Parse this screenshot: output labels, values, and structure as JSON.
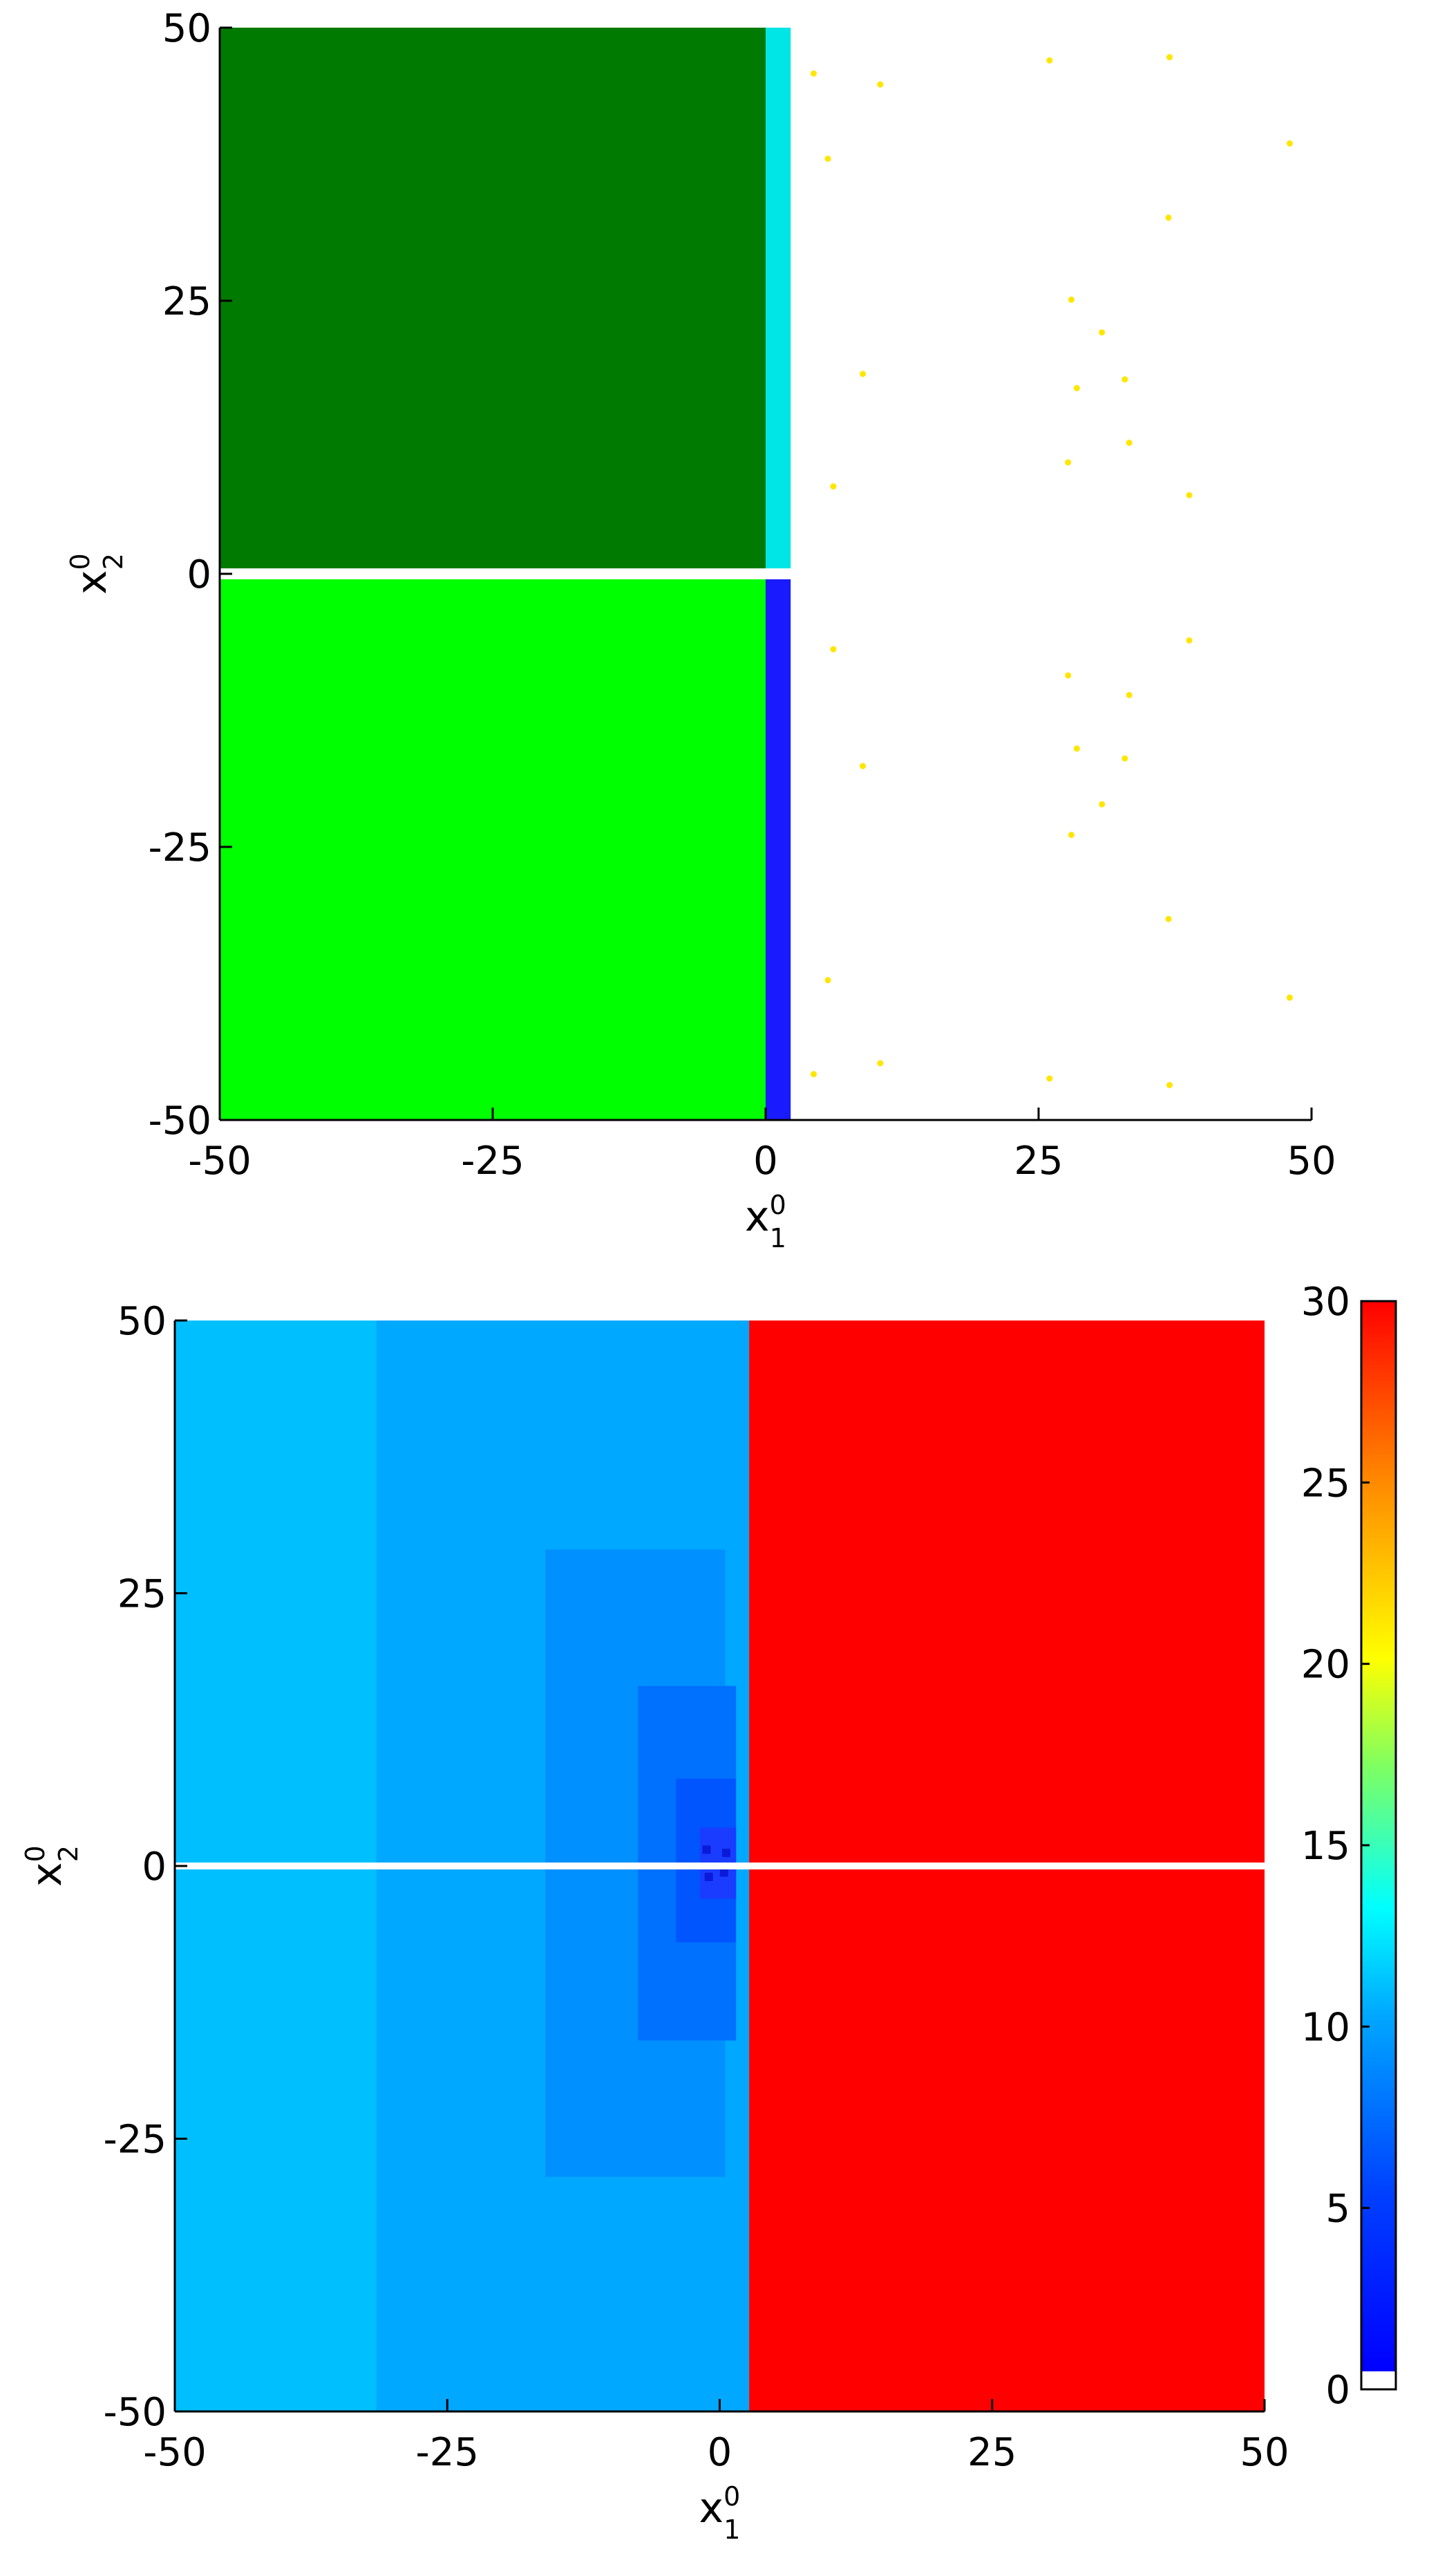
{
  "chart_data": [
    {
      "type": "heatmap",
      "title": "",
      "xlim": [
        -50,
        50
      ],
      "ylim": [
        -50,
        50
      ],
      "xticks": [
        -50,
        -25,
        0,
        25,
        50
      ],
      "yticks": [
        -50,
        -25,
        0,
        25,
        50
      ],
      "xticklabels": [
        "-50",
        "-25",
        "0",
        "25",
        "50"
      ],
      "yticklabels": [
        "-50",
        "-25",
        "0",
        "25",
        "50"
      ],
      "xlabel": {
        "base": "x",
        "sup": "0",
        "sub": "1"
      },
      "ylabel": {
        "base": "x",
        "sup": "0",
        "sub": "2"
      },
      "grid": false,
      "regions": [
        {
          "x": [
            -50,
            0
          ],
          "y": [
            0.5,
            50
          ],
          "color": "#007a00"
        },
        {
          "x": [
            -50,
            0
          ],
          "y": [
            -50,
            -0.5
          ],
          "color": "#00ff00"
        },
        {
          "x": [
            0,
            2.3
          ],
          "y": [
            0.5,
            50
          ],
          "color": "#00e5e5"
        },
        {
          "x": [
            0,
            2.3
          ],
          "y": [
            -50,
            -0.5
          ],
          "color": "#1a1aff"
        },
        {
          "x": [
            2.3,
            50
          ],
          "y": [
            -50,
            50
          ],
          "color": "#ffffff"
        }
      ],
      "points": {
        "color": "#ffe600",
        "xy": [
          [
            4.4,
            45.8
          ],
          [
            10.5,
            44.8
          ],
          [
            26,
            47
          ],
          [
            37,
            47.3
          ],
          [
            48,
            39.4
          ],
          [
            5.7,
            38
          ],
          [
            36.9,
            32.6
          ],
          [
            28,
            25.1
          ],
          [
            30.8,
            22.1
          ],
          [
            8.9,
            18.3
          ],
          [
            28.5,
            17
          ],
          [
            32.9,
            17.8
          ],
          [
            33.3,
            12
          ],
          [
            27.7,
            10.2
          ],
          [
            6.2,
            8
          ],
          [
            38.8,
            7.2
          ],
          [
            4.4,
            -45.8
          ],
          [
            10.5,
            -44.8
          ],
          [
            26,
            -46.2
          ],
          [
            37,
            -46.8
          ],
          [
            48,
            -38.8
          ],
          [
            5.7,
            -37.2
          ],
          [
            36.9,
            -31.6
          ],
          [
            28,
            -23.9
          ],
          [
            30.8,
            -21.1
          ],
          [
            8.9,
            -17.6
          ],
          [
            28.5,
            -16
          ],
          [
            32.9,
            -16.9
          ],
          [
            33.3,
            -11.1
          ],
          [
            27.7,
            -9.3
          ],
          [
            6.2,
            -6.9
          ],
          [
            38.8,
            -6.1
          ]
        ]
      }
    },
    {
      "type": "heatmap",
      "title": "",
      "xlim": [
        -50,
        50
      ],
      "ylim": [
        -50,
        50
      ],
      "xticks": [
        -50,
        -25,
        0,
        25,
        50
      ],
      "yticks": [
        -50,
        -25,
        0,
        25,
        50
      ],
      "xticklabels": [
        "-50",
        "-25",
        "0",
        "25",
        "50"
      ],
      "yticklabels": [
        "-50",
        "-25",
        "0",
        "25",
        "50"
      ],
      "xlabel": {
        "base": "x",
        "sup": "0",
        "sub": "1"
      },
      "ylabel": {
        "base": "x",
        "sup": "0",
        "sub": "2"
      },
      "grid": false,
      "colorbar": {
        "min": 0,
        "max": 30,
        "ticks": [
          0,
          5,
          10,
          15,
          20,
          25,
          30
        ],
        "ticklabels": [
          "0",
          "5",
          "10",
          "15",
          "20",
          "25",
          "30"
        ],
        "stops": [
          {
            "v": 0,
            "color": "#0000ff"
          },
          {
            "v": 5,
            "color": "#0040ff"
          },
          {
            "v": 10,
            "color": "#00a8ff"
          },
          {
            "v": 13,
            "color": "#00ffff"
          },
          {
            "v": 17,
            "color": "#80ff60"
          },
          {
            "v": 20,
            "color": "#ffff00"
          },
          {
            "v": 25,
            "color": "#ff8800"
          },
          {
            "v": 30,
            "color": "#ff0000"
          }
        ],
        "empty_color": "#ffffff"
      },
      "regions": [
        {
          "x": [
            -50,
            2.7
          ],
          "y": [
            -50,
            50
          ],
          "value": 8.5,
          "color": "#00bfff"
        },
        {
          "x": [
            -31.5,
            2.7
          ],
          "y": [
            -50,
            50
          ],
          "value": 7.5,
          "color": "#00a8ff"
        },
        {
          "x": [
            -16,
            0.5
          ],
          "y": [
            -28.5,
            29
          ],
          "value": 6.5,
          "color": "#0090ff"
        },
        {
          "x": [
            -7.5,
            1.5
          ],
          "y": [
            -16,
            16.5
          ],
          "value": 5,
          "color": "#0070ff"
        },
        {
          "x": [
            -4,
            1.5
          ],
          "y": [
            -7,
            8
          ],
          "value": 3.5,
          "color": "#0055ff"
        },
        {
          "x": [
            -1.8,
            1.5
          ],
          "y": [
            -3,
            3.5
          ],
          "value": 2.5,
          "color": "#1a3cff"
        },
        {
          "x": [
            2.7,
            50
          ],
          "y": [
            -50,
            50
          ],
          "value": 30,
          "color": "#ff0000"
        }
      ]
    }
  ]
}
